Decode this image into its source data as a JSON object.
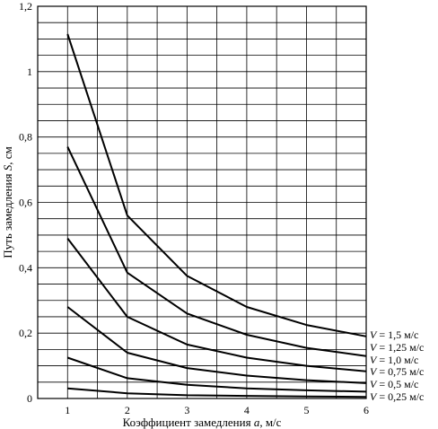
{
  "chart_data": {
    "type": "line",
    "title": "",
    "xlabel_prefix": "Коэффициент замедления ",
    "xlabel_var": "a",
    "xlabel_suffix": ", м/с",
    "ylabel_prefix": "Путь замедления ",
    "ylabel_var": "S",
    "ylabel_suffix": ", см",
    "xlim": [
      0.5,
      6
    ],
    "ylim": [
      0,
      1.2
    ],
    "x_ticks": [
      1,
      2,
      3,
      4,
      5,
      6
    ],
    "x_tick_labels": [
      "1",
      "2",
      "3",
      "4",
      "5",
      "6"
    ],
    "y_ticks": [
      0,
      0.2,
      0.4,
      0.6,
      0.8,
      1,
      1.2
    ],
    "y_tick_labels": [
      "0",
      "0,2",
      "0,4",
      "0,6",
      "0,8",
      "1",
      "1,2"
    ],
    "x_grid_step": 0.5,
    "y_grid_step": 0.05,
    "grid": true,
    "legend_placement": "right of plot, at line ends",
    "x": [
      1,
      2,
      3,
      4,
      5,
      6
    ],
    "series": [
      {
        "name": "V = 1,5 м/с",
        "values": [
          1.115,
          0.56,
          0.375,
          0.28,
          0.225,
          0.19
        ]
      },
      {
        "name": "V = 1,25 м/с",
        "values": [
          0.77,
          0.385,
          0.26,
          0.195,
          0.155,
          0.13
        ]
      },
      {
        "name": "V = 1,0 м/с",
        "values": [
          0.49,
          0.25,
          0.165,
          0.125,
          0.1,
          0.083
        ]
      },
      {
        "name": "V = 0,75 м/с",
        "values": [
          0.28,
          0.14,
          0.093,
          0.07,
          0.056,
          0.047
        ]
      },
      {
        "name": "V = 0,5 м/с",
        "values": [
          0.125,
          0.062,
          0.042,
          0.031,
          0.025,
          0.021
        ]
      },
      {
        "name": "V = 0,25 м/с",
        "values": [
          0.031,
          0.016,
          0.01,
          0.008,
          0.006,
          0.005
        ]
      }
    ]
  }
}
